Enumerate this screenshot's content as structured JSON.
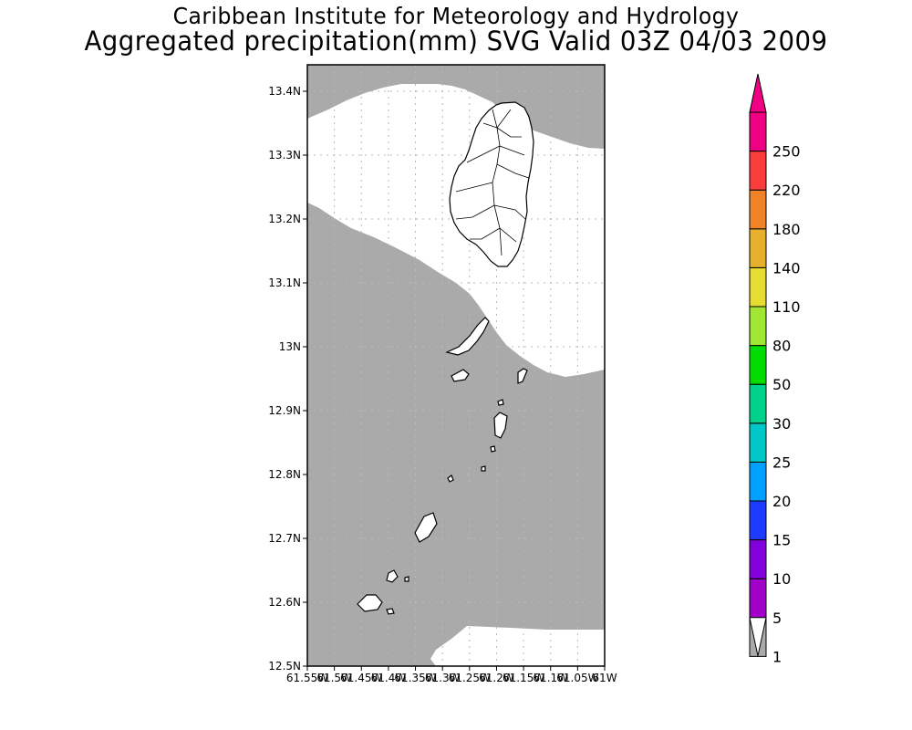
{
  "title": {
    "line1": "Caribbean Institute for Meteorology and Hydrology",
    "line2": "Aggregated precipitation(mm) SVG Valid 03Z 04/03 2009"
  },
  "map": {
    "lat_range": [
      12.5,
      13.45
    ],
    "lon_range": [
      -61.55,
      -61.0
    ],
    "lat_labels": [
      "13.4N",
      "13.3N",
      "13.2N",
      "13.1N",
      "13N",
      "12.9N",
      "12.8N",
      "12.7N",
      "12.6N",
      "12.5N"
    ],
    "lon_labels": [
      "61.55W",
      "61.5W",
      "61.45W",
      "61.4W",
      "61.35W",
      "61.3W",
      "61.25W",
      "61.2W",
      "61.15W",
      "61.1W",
      "61.05W",
      "61W"
    ],
    "grid": true,
    "shaded_class": "1-5 mm",
    "fill_color": "#aaaaaa"
  },
  "colorbar": {
    "labels": [
      "1",
      "5",
      "10",
      "15",
      "20",
      "25",
      "30",
      "50",
      "80",
      "110",
      "140",
      "180",
      "220",
      "250"
    ],
    "colors": [
      "#aaaaaa",
      "#a000c8",
      "#8200dc",
      "#1e3cff",
      "#00a0ff",
      "#00c8c8",
      "#00d28c",
      "#00dc00",
      "#a0e632",
      "#e6dc32",
      "#e6af2d",
      "#f08228",
      "#fa3c3c",
      "#f00082"
    ],
    "under_color": "#ffffff",
    "placement": "right"
  }
}
